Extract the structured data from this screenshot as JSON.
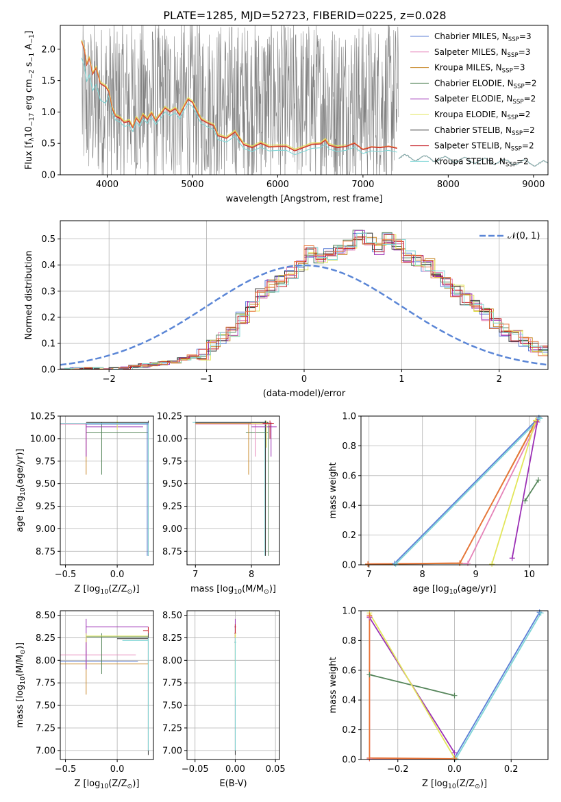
{
  "figure_title": "PLATE=1285, MJD=52723, FIBERID=0225, z=0.028",
  "colors": {
    "Chabrier MILES": "#5b7ed6",
    "Salpeter MILES": "#e583b8",
    "Kroupa MILES": "#c8882a",
    "Chabrier ELODIE": "#55855a",
    "Salpeter ELODIE": "#9b2fb5",
    "Kroupa ELODIE": "#e2e65a",
    "Chabrier STELIB": "#333333",
    "Salpeter STELIB": "#c2171f",
    "Kroupa STELIB": "#7fd6d6",
    "orange_overlay": "#e8753a",
    "data_gray": "#808080",
    "normal_curve": "#5b86d6",
    "grid": "#b0b0b0"
  },
  "chart_data": [
    {
      "id": "spectrum",
      "type": "line",
      "title": "PLATE=1285, MJD=52723, FIBERID=0225, z=0.028",
      "xlabel": "wavelength [Angstrom, rest frame]",
      "ylabel_parts": [
        "Flux [f",
        "λ",
        "10",
        "−17",
        " erg cm",
        "−2",
        " s",
        "−1",
        " A",
        "−1",
        "]"
      ],
      "xlim": [
        3450,
        9170
      ],
      "ylim": [
        0,
        2.38
      ],
      "xticks": [
        "4000",
        "5000",
        "6000",
        "7000",
        "8000",
        "9000"
      ],
      "yticks": [
        "0.0",
        "0.5",
        "1.0",
        "1.5",
        "2.0"
      ],
      "grid": false,
      "legend_position": "top-right",
      "legend": [
        {
          "label": "Chabrier MILES, N",
          "sub": "SSP",
          "suffix": "=3"
        },
        {
          "label": "Salpeter MILES, N",
          "sub": "SSP",
          "suffix": "=3"
        },
        {
          "label": "Kroupa MILES, N",
          "sub": "SSP",
          "suffix": "=3"
        },
        {
          "label": "Chabrier ELODIE, N",
          "sub": "SSP",
          "suffix": "=2"
        },
        {
          "label": "Salpeter ELODIE, N",
          "sub": "SSP",
          "suffix": "=2"
        },
        {
          "label": "Kroupa ELODIE, N",
          "sub": "SSP",
          "suffix": "=2"
        },
        {
          "label": "Chabrier STELIB, N",
          "sub": "SSP",
          "suffix": "=2"
        },
        {
          "label": "Salpeter STELIB, N",
          "sub": "SSP",
          "suffix": "=2"
        },
        {
          "label": "Kroupa STELIB, N",
          "sub": "SSP",
          "suffix": "=2"
        }
      ],
      "model_x": [
        3700,
        3730,
        3760,
        3790,
        3830,
        3870,
        3920,
        3980,
        4020,
        4060,
        4100,
        4150,
        4200,
        4260,
        4300,
        4340,
        4380,
        4420,
        4470,
        4520,
        4570,
        4620,
        4680,
        4740,
        4800,
        4850,
        4900,
        4950,
        5000,
        5050,
        5100,
        5180,
        5250,
        5300,
        5400,
        5500,
        5600,
        5700,
        5800,
        5900,
        6000,
        6100,
        6200,
        6300,
        6400,
        6500,
        6560,
        6600,
        6700,
        6800,
        6900,
        7000,
        7100,
        7200,
        7300,
        7400
      ],
      "model_y": [
        2.12,
        2.0,
        1.75,
        1.85,
        1.6,
        1.7,
        1.45,
        1.4,
        1.32,
        1.05,
        0.93,
        0.9,
        0.83,
        0.85,
        0.75,
        0.9,
        0.83,
        0.95,
        0.88,
        0.98,
        0.86,
        0.95,
        1.06,
        1.0,
        1.05,
        0.95,
        1.08,
        1.2,
        1.15,
        1.02,
        0.88,
        0.82,
        0.78,
        0.62,
        0.58,
        0.68,
        0.48,
        0.43,
        0.5,
        0.44,
        0.45,
        0.45,
        0.38,
        0.43,
        0.48,
        0.49,
        0.55,
        0.47,
        0.43,
        0.45,
        0.5,
        0.4,
        0.44,
        0.43,
        0.45,
        0.42
      ]
    },
    {
      "id": "residuals",
      "type": "step",
      "xlabel": "(data-model)/error",
      "ylabel": "Normed distribution",
      "xlim": [
        -2.5,
        2.5
      ],
      "ylim": [
        0,
        0.57
      ],
      "xticks": [
        "−2",
        "−1",
        "0",
        "1",
        "2"
      ],
      "yticks": [
        "0.0",
        "0.1",
        "0.2",
        "0.3",
        "0.4",
        "0.5"
      ],
      "grid": true,
      "legend_position": "top-right",
      "legend": [
        {
          "label": "𝒩(0, 1)"
        }
      ],
      "bin_width": 0.1,
      "bin_start": -2.5,
      "base_values": [
        0.0,
        0.0,
        0.0,
        0.0,
        0.0,
        0.0,
        0.005,
        0.01,
        0.015,
        0.02,
        0.025,
        0.03,
        0.04,
        0.05,
        0.06,
        0.09,
        0.12,
        0.15,
        0.2,
        0.24,
        0.29,
        0.32,
        0.34,
        0.37,
        0.4,
        0.45,
        0.42,
        0.44,
        0.46,
        0.48,
        0.52,
        0.5,
        0.46,
        0.5,
        0.48,
        0.43,
        0.42,
        0.4,
        0.36,
        0.33,
        0.3,
        0.27,
        0.24,
        0.21,
        0.18,
        0.15,
        0.13,
        0.11,
        0.09,
        0.07,
        0.06,
        0.06,
        0.05,
        0.05,
        0.05,
        0.05,
        0.04,
        0.04,
        0.03,
        0.03,
        0.03,
        0.03,
        0.04,
        0.03,
        0.03,
        0.03,
        0.03,
        0.03,
        0.04,
        0.04,
        0.03,
        0.04,
        0.04,
        0.04,
        0.04,
        0.04,
        0.04,
        0.04,
        0.04,
        0.04,
        0.04,
        0.04,
        0.04,
        0.04,
        0.04,
        0.04,
        0.04,
        0.04,
        0.04,
        0.04,
        0.04,
        0.04,
        0.04,
        0.04,
        0.04,
        0.04,
        0.04,
        0.04,
        0.04,
        0.04
      ],
      "normal": {
        "mu": 0,
        "sigma": 1
      }
    },
    {
      "id": "age_vs_Z",
      "type": "errorbar",
      "xlabel_parts": [
        "Z [log",
        "10",
        "(Z/Z",
        "⊙",
        ")]"
      ],
      "ylabel_parts": [
        "age  [log",
        "10",
        "(age/yr)]"
      ],
      "xlim": [
        -0.55,
        0.35
      ],
      "ylim": [
        8.6,
        10.25
      ],
      "xticks": [
        "−0.5",
        "0.0"
      ],
      "yticks": [
        "8.75",
        "9.00",
        "9.25",
        "9.50",
        "9.75",
        "10.00",
        "10.25"
      ],
      "grid": true
    },
    {
      "id": "age_vs_mass",
      "type": "errorbar",
      "xlabel_parts": [
        "mass [log",
        "10",
        "(M/M",
        "⊙",
        ")]"
      ],
      "xlim": [
        6.85,
        8.5
      ],
      "ylim": [
        8.6,
        10.25
      ],
      "xticks": [
        "7",
        "8"
      ],
      "yticks": [
        "8.75",
        "9.00",
        "9.25",
        "9.50",
        "9.75",
        "10.00",
        "10.25"
      ],
      "grid": true
    },
    {
      "id": "massweight_vs_age",
      "type": "line",
      "xlabel_parts": [
        "age  [log",
        "10",
        "(age/yr)]"
      ],
      "ylabel": "mass weight",
      "xlim": [
        6.85,
        10.35
      ],
      "ylim": [
        0,
        1.0
      ],
      "xticks": [
        "7",
        "8",
        "9",
        "10"
      ],
      "yticks": [
        "0.0",
        "0.2",
        "0.4",
        "0.6",
        "0.8",
        "1.0"
      ],
      "grid": true,
      "series": [
        {
          "color": "Chabrier MILES",
          "x": [
            7.48,
            10.18
          ],
          "y": [
            0.01,
            0.99
          ]
        },
        {
          "color": "Kroupa STELIB",
          "x": [
            7.5,
            10.2
          ],
          "y": [
            0.005,
            0.985
          ]
        },
        {
          "color": "Salpeter MILES",
          "x": [
            6.98,
            8.85,
            10.15
          ],
          "y": [
            0.005,
            0.01,
            0.96
          ]
        },
        {
          "color": "Kroupa MILES",
          "x": [
            6.98,
            8.7,
            10.13
          ],
          "y": [
            0.005,
            0.01,
            0.97
          ]
        },
        {
          "color": "orange_overlay",
          "x": [
            6.98,
            8.7,
            10.13
          ],
          "y": [
            0.006,
            0.012,
            0.965
          ]
        },
        {
          "color": "Kroupa ELODIE",
          "x": [
            9.3,
            10.12
          ],
          "y": [
            0.005,
            0.97
          ]
        },
        {
          "color": "Salpeter ELODIE",
          "x": [
            9.68,
            10.15
          ],
          "y": [
            0.045,
            0.96
          ]
        },
        {
          "color": "Chabrier ELODIE",
          "x": [
            9.92,
            10.17
          ],
          "y": [
            0.43,
            0.57
          ]
        }
      ]
    },
    {
      "id": "mass_vs_Z",
      "type": "errorbar",
      "xlabel_parts": [
        "Z [log",
        "10",
        "(Z/Z",
        "⊙",
        ")]"
      ],
      "ylabel_parts": [
        "mass [log",
        "10",
        "(M/M",
        "⊙",
        ")]"
      ],
      "xlim": [
        -0.55,
        0.35
      ],
      "ylim": [
        6.9,
        8.55
      ],
      "xticks": [
        "−0.5",
        "0.0"
      ],
      "yticks": [
        "7.00",
        "7.25",
        "7.50",
        "7.75",
        "8.00",
        "8.25",
        "8.50"
      ],
      "grid": true
    },
    {
      "id": "mass_vs_EBV",
      "type": "errorbar",
      "xlabel": "E(B-V)",
      "xlim": [
        -0.06,
        0.055
      ],
      "ylim": [
        6.9,
        8.55
      ],
      "xticks": [
        "−0.05",
        "0.00",
        "0.05"
      ],
      "yticks": [
        "7.00",
        "7.25",
        "7.50",
        "7.75",
        "8.00",
        "8.25",
        "8.50"
      ],
      "grid": true
    },
    {
      "id": "massweight_vs_Z",
      "type": "line",
      "xlabel_parts": [
        "Z [log",
        "10",
        "(Z/Z",
        "⊙",
        ")]"
      ],
      "ylabel": "mass weight",
      "xlim": [
        -0.33,
        0.33
      ],
      "ylim": [
        0,
        1.0
      ],
      "xticks": [
        "−0.2",
        "0.0",
        "0.2"
      ],
      "yticks": [
        "0.0",
        "0.2",
        "0.4",
        "0.6",
        "0.8",
        "1.0"
      ],
      "grid": true,
      "series": [
        {
          "color": "Chabrier MILES",
          "x": [
            0.0,
            0.3
          ],
          "y": [
            0.01,
            0.99
          ]
        },
        {
          "color": "Kroupa STELIB",
          "x": [
            0.005,
            0.305
          ],
          "y": [
            0.005,
            0.985
          ]
        },
        {
          "color": "Chabrier ELODIE",
          "x": [
            -0.3,
            0.0
          ],
          "y": [
            0.57,
            0.43
          ]
        },
        {
          "color": "Salpeter ELODIE",
          "x": [
            -0.3,
            0.0
          ],
          "y": [
            0.955,
            0.045
          ]
        },
        {
          "color": "Kroupa ELODIE",
          "x": [
            -0.3,
            0.0
          ],
          "y": [
            0.985,
            0.01
          ]
        },
        {
          "color": "Salpeter MILES",
          "x": [
            -0.3,
            -0.3,
            0.0
          ],
          "y": [
            0.96,
            0.005,
            0.005
          ]
        },
        {
          "color": "orange_overlay",
          "x": [
            -0.3,
            -0.3,
            0.0
          ],
          "y": [
            0.97,
            0.01,
            0.005
          ]
        }
      ]
    }
  ]
}
